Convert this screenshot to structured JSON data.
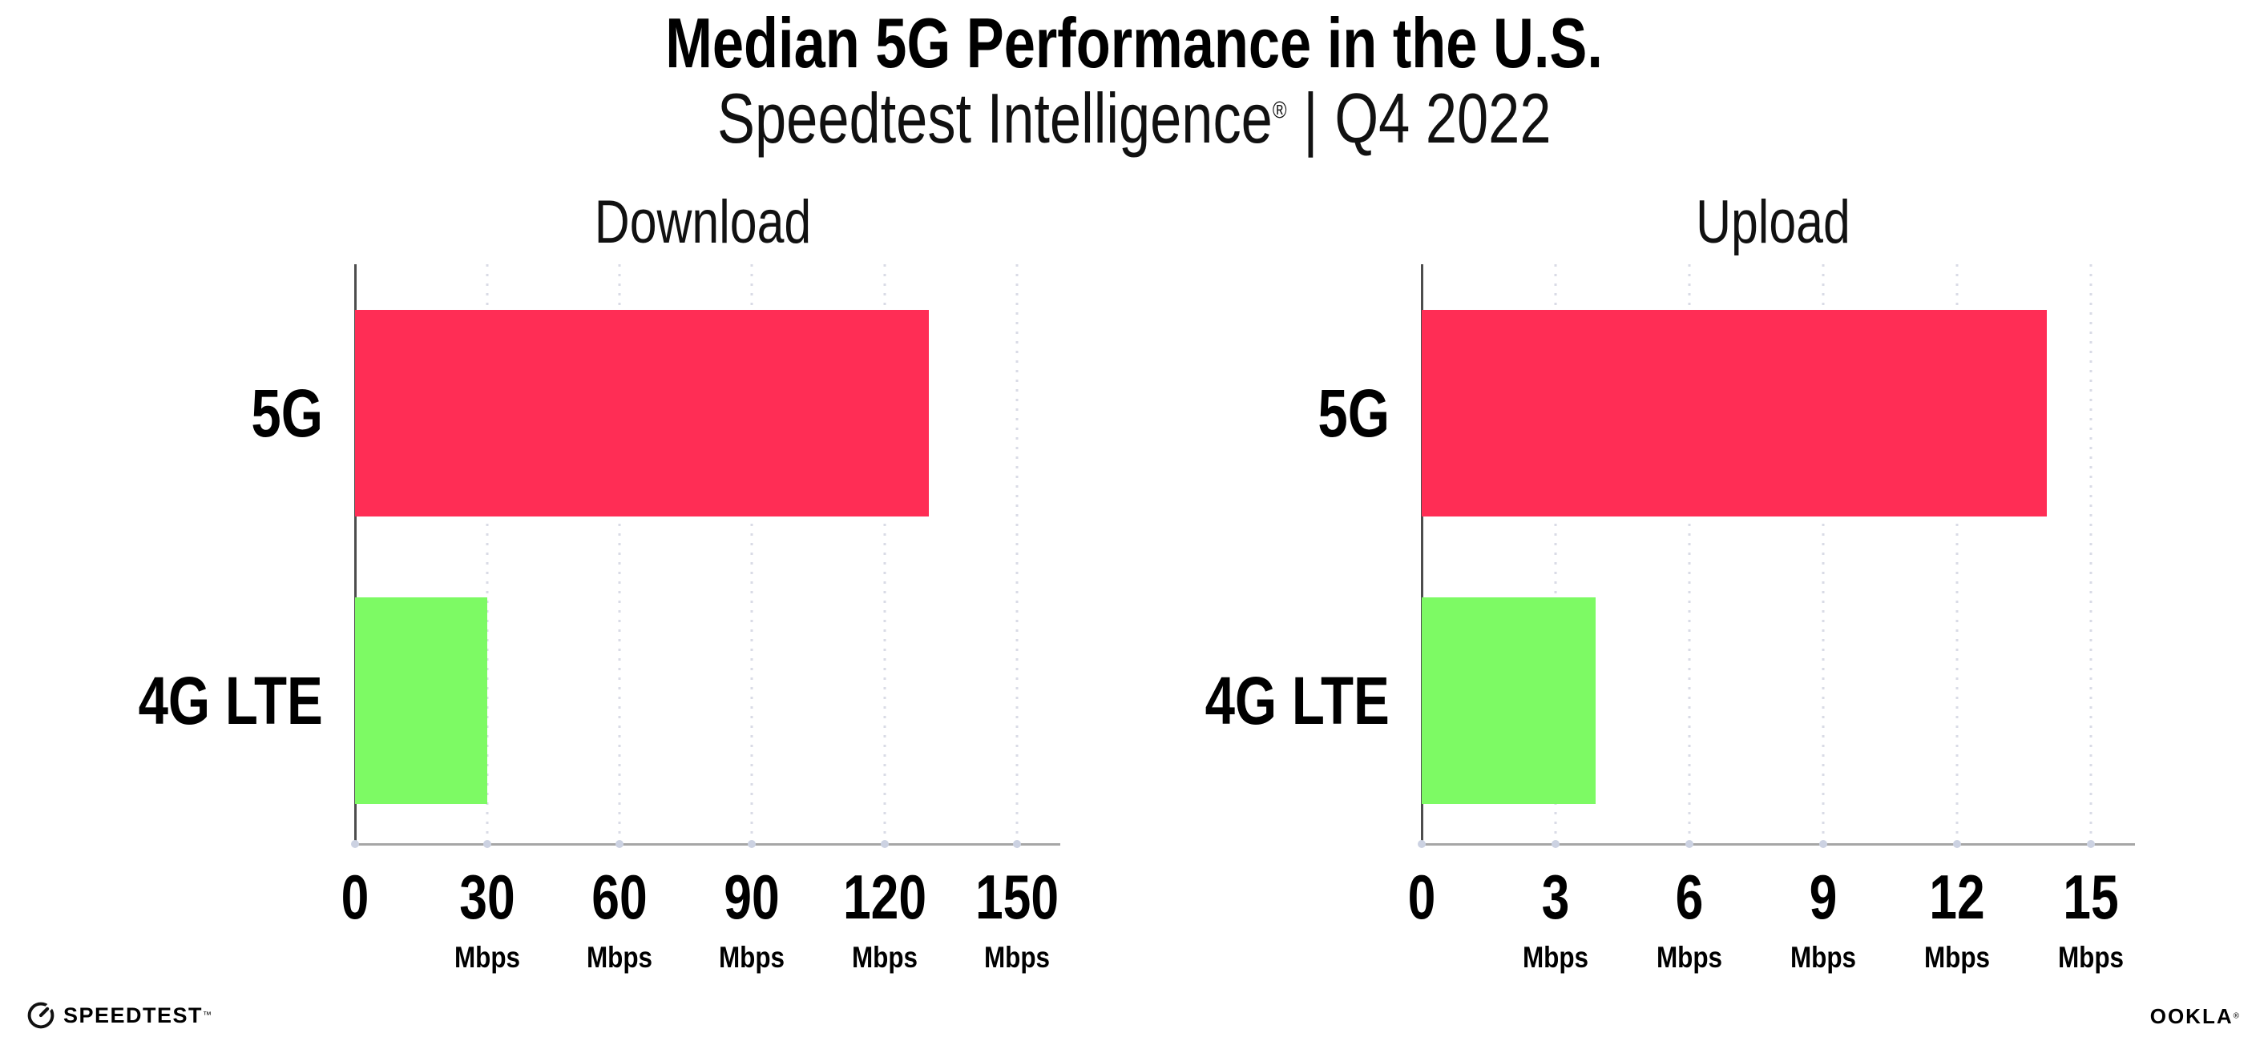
{
  "header": {
    "title": "Median 5G Performance in the U.S.",
    "subtitle_brand": "Speedtest Intelligence",
    "subtitle_reg": "®",
    "subtitle_divider": "|",
    "subtitle_period": "Q4 2022"
  },
  "footer": {
    "speedtest_label": "SPEEDTEST",
    "speedtest_mark": "™",
    "ookla_label": "OOKLA",
    "ookla_mark": "®"
  },
  "colors": {
    "bar_5g": "#ff2d55",
    "bar_4g_lte": "#7dfa64",
    "gridline": "#d9dbe6",
    "x_axis": "#a6a6a6",
    "y_axis": "#4d4d4d",
    "tick_dot": "#ccd2e2",
    "text": "#000000"
  },
  "chart_data": [
    {
      "type": "bar",
      "orientation": "horizontal",
      "title": "Download",
      "categories": [
        "5G",
        "4G LTE"
      ],
      "values": [
        130,
        30
      ],
      "unit": "Mbps",
      "ticks": [
        0,
        30,
        60,
        90,
        120,
        150
      ],
      "xlim": [
        0,
        157.5
      ],
      "axis_max_tick": 150,
      "grid": "dotted-vertical",
      "legend": "none",
      "bar_colors": [
        "#ff2d55",
        "#7dfa64"
      ]
    },
    {
      "type": "bar",
      "orientation": "horizontal",
      "title": "Upload",
      "categories": [
        "5G",
        "4G LTE"
      ],
      "values": [
        14,
        3.9
      ],
      "unit": "Mbps",
      "ticks": [
        0,
        3,
        6,
        9,
        12,
        15
      ],
      "xlim": [
        0,
        15.75
      ],
      "axis_max_tick": 15,
      "grid": "dotted-vertical",
      "legend": "none",
      "bar_colors": [
        "#ff2d55",
        "#7dfa64"
      ]
    }
  ]
}
